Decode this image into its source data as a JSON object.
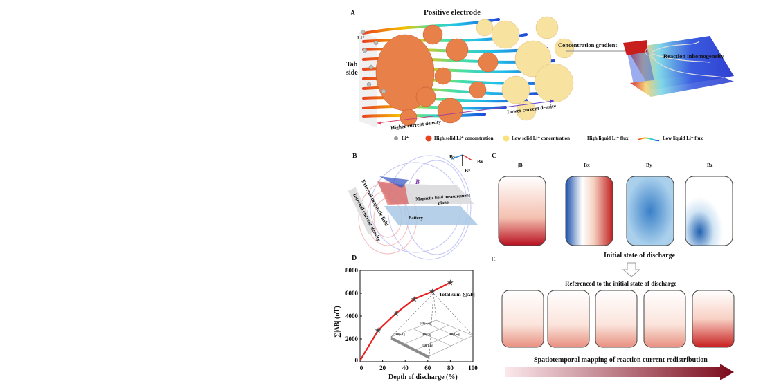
{
  "panelA": {
    "label": "A",
    "positive_electrode": "Positive electrode",
    "tab_side": "Tab side",
    "li_plus": "Li⁺",
    "lower_current_density": "Lower current density",
    "higher_current_density": "Higher current density",
    "concentration_gradient": "Concentration gradient",
    "reaction_inhomogeneity": "Reaction inhomogeneity",
    "legend": {
      "li": "Li⁺",
      "high_solid": "High solid Li⁺ concentration",
      "low_solid": "Low solid Li⁺ concentration",
      "high_liquid_flux": "High liquid Li⁺ flux",
      "low_liquid_flux": "Low liquid Li⁺ flux"
    },
    "colors": {
      "high_solid": "#e8431e",
      "low_solid": "#f7e27e",
      "flux_high": "#e8431e",
      "flux_low": "#1e4ad8"
    }
  },
  "panelB": {
    "label": "B",
    "axes": {
      "by": "By",
      "bx": "Bx",
      "bz": "Bz"
    },
    "b_vector": "B",
    "external_field": "External magnetic field",
    "internal_current": "Internal current density",
    "measurement_plane": "Magnetic field measurement plane",
    "battery": "Battery"
  },
  "panelC": {
    "label": "C",
    "columns": [
      "|B|",
      "Bx",
      "By",
      "Bz"
    ],
    "initial_state": "Initial state of discharge"
  },
  "panelE": {
    "label": "E",
    "referenced": "Referenced to the initial state of discharge",
    "spatiotemporal": "Spatiotemporal mapping of reaction current redistribution"
  },
  "panelD": {
    "label": "D",
    "annotation": "Total sum ∑|ΔB|",
    "grid_labels": [
      "|ΔB(n,m)|",
      "|ΔB(n,1)|",
      "|ΔB(i,j)|",
      "|ΔB(1,m)|",
      "|ΔB(1,1)|"
    ]
  },
  "chart_data": {
    "type": "line",
    "xlabel": "Depth of discharge (%)",
    "ylabel": "∑|ΔB| (nT)",
    "xlim": [
      0,
      100
    ],
    "ylim": [
      0,
      8000
    ],
    "xticks": [
      "0",
      "20",
      "40",
      "60",
      "80",
      "100"
    ],
    "yticks": [
      "0",
      "2000",
      "4000",
      "6000",
      "8000"
    ],
    "grid": false,
    "series": [
      {
        "x": [
          0,
          16,
          32,
          48,
          64,
          80
        ],
        "y": [
          100,
          2750,
          4250,
          5500,
          6150,
          6950
        ],
        "color": "#e8201e",
        "marker": "star"
      }
    ]
  }
}
